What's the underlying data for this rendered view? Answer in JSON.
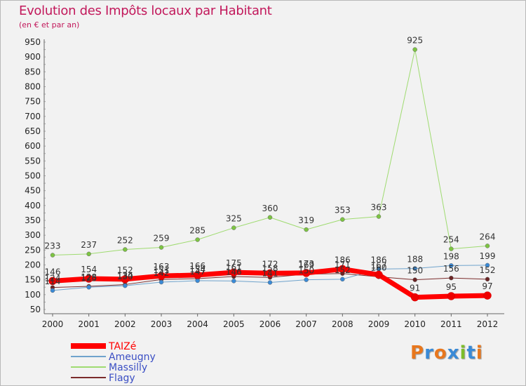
{
  "header": {
    "title": "Evolution des Impôts locaux par Habitant",
    "subtitle": "(en € et par an)"
  },
  "logo": {
    "text": "Proxiti",
    "colors": [
      "#e8771d",
      "#3a8ad6",
      "#e8771d",
      "#3a8ad6",
      "#7dbd2b",
      "#3a8ad6",
      "#e8771d"
    ]
  },
  "chart_data": {
    "type": "line",
    "categories": [
      "2000",
      "2001",
      "2002",
      "2003",
      "2004",
      "2005",
      "2006",
      "2007",
      "2008",
      "2009",
      "2010",
      "2011",
      "2012"
    ],
    "ylim": [
      50,
      950
    ],
    "yticks": [
      50,
      100,
      150,
      200,
      250,
      300,
      350,
      400,
      450,
      500,
      550,
      600,
      650,
      700,
      750,
      800,
      850,
      900,
      950
    ],
    "grid": false,
    "legend_position": "bottom-left",
    "series": [
      {
        "name": "Flagy",
        "color": "#7b2c2c",
        "width": 1,
        "marker": "#6b2424",
        "values": [
          124,
          128,
          134,
          151,
          154,
          161,
          158,
          169,
          171,
          160,
          150,
          156,
          152
        ],
        "labels": [
          "124",
          "128",
          "134",
          "151",
          "154",
          "161",
          "158",
          "169",
          "171",
          "160",
          "150",
          "156",
          "152"
        ]
      },
      {
        "name": "Ameugny",
        "color": "#6fa3cc",
        "width": 1,
        "marker": "#3a8ad6",
        "values": [
          114,
          125,
          130,
          142,
          147,
          146,
          141,
          150,
          152,
          186,
          188,
          198,
          199
        ],
        "labels": [
          "114",
          "125",
          "130",
          "142",
          "147",
          "146",
          "141",
          "150",
          "152",
          "186",
          "188",
          "198",
          "199"
        ]
      },
      {
        "name": "Massilly",
        "color": "#9fdb70",
        "width": 1,
        "marker": "#7dc443",
        "values": [
          233,
          237,
          252,
          259,
          285,
          325,
          360,
          319,
          353,
          363,
          925,
          254,
          264
        ],
        "labels": [
          "233",
          "237",
          "252",
          "259",
          "285",
          "325",
          "360",
          "319",
          "353",
          "363",
          "925",
          "254",
          "264"
        ]
      },
      {
        "name": "TAIZé",
        "color": "#ff0000",
        "width": 7,
        "marker": "#ee0000",
        "values": [
          146,
          154,
          152,
          163,
          166,
          175,
          172,
          173,
          186,
          167,
          91,
          95,
          97
        ],
        "labels": [
          "146",
          "154",
          "152",
          "163",
          "166",
          "175",
          "172",
          "173",
          "186",
          "167",
          "91",
          "95",
          "97"
        ]
      }
    ],
    "legend_order": [
      "TAIZé",
      "Ameugny",
      "Massilly",
      "Flagy"
    ]
  }
}
